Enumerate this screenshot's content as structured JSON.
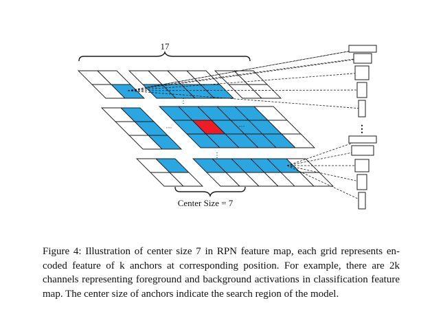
{
  "figure": {
    "top_count_label": "17",
    "center_label": "Center Size = 7",
    "colors": {
      "cell_blue": "#2aa7e0",
      "cell_red": "#ee1c24",
      "outline": "#1a1a1a",
      "background": "#ffffff"
    }
  },
  "caption": {
    "lines": [
      "Figure 4: Illustration of center size 7 in RPN feature map, each grid represents en-",
      "coded feature of k anchors at corresponding position.  For example, there are 2k",
      "channels representing foreground and background activations in classification feature",
      "map. The center size of anchors indicate the search region of the model."
    ]
  }
}
